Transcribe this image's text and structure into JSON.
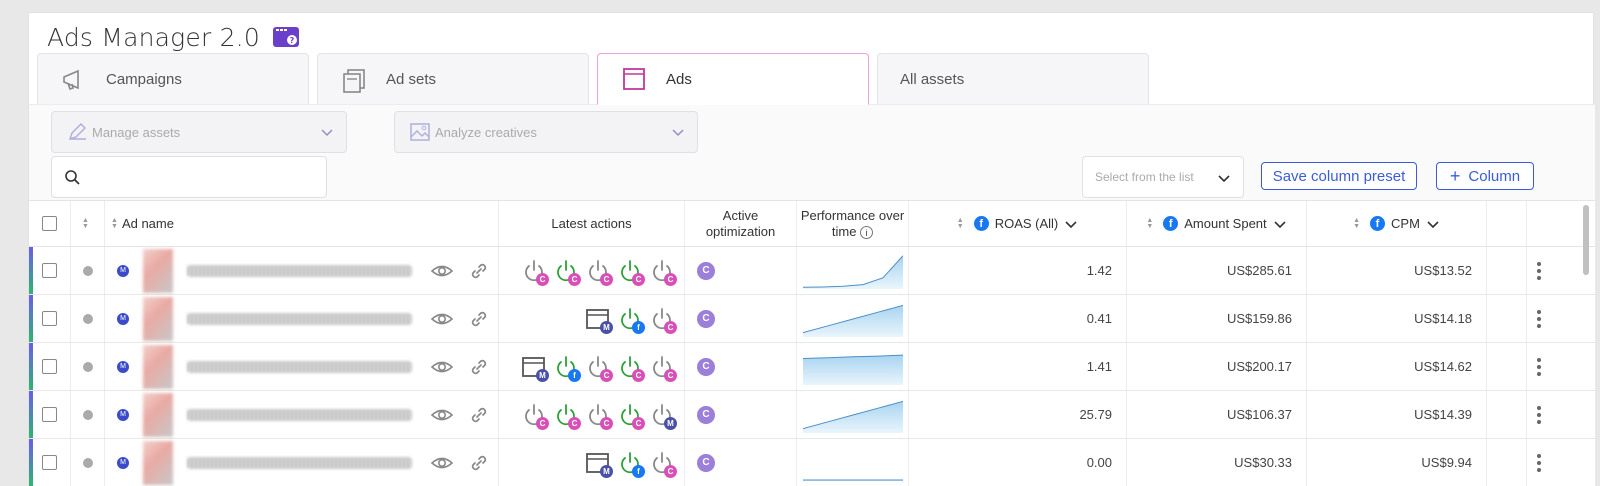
{
  "app": {
    "title": "Ads Manager 2.0"
  },
  "tabs": [
    {
      "label": "Campaigns",
      "icon": "megaphone-icon",
      "active": false
    },
    {
      "label": "Ad sets",
      "icon": "stack-icon",
      "active": false
    },
    {
      "label": "Ads",
      "icon": "ad-square-icon",
      "active": true
    },
    {
      "label": "All assets",
      "icon": "",
      "active": false
    }
  ],
  "toolbar": {
    "manage_assets": "Manage assets",
    "analyze_creatives": "Analyze creatives",
    "search_placeholder": "",
    "select_list_placeholder": "Select from the list",
    "save_preset": "Save column preset",
    "add_column": "Column"
  },
  "columns": {
    "ad_name": "Ad name",
    "latest_actions": "Latest actions",
    "active_optimization_line1": "Active",
    "active_optimization_line2": "optimization",
    "performance_line1": "Performance over",
    "performance_line2": "time",
    "roas": "ROAS (All)",
    "amount_spent": "Amount Spent",
    "cpm": "CPM"
  },
  "rows": [
    {
      "actions": [
        [
          "power",
          "#888",
          "C"
        ],
        [
          "power",
          "#2e9e3e",
          "C"
        ],
        [
          "power",
          "#888",
          "C"
        ],
        [
          "power",
          "#2e9e3e",
          "C"
        ],
        [
          "power",
          "#888",
          "C"
        ]
      ],
      "optim": "C",
      "roas": "1.42",
      "spent": "US$285.61",
      "cpm": "US$13.52",
      "trend": [
        0.02,
        0.03,
        0.05,
        0.1,
        0.3,
        0.95
      ]
    },
    {
      "actions": [
        [
          "ad",
          "#555",
          "M"
        ],
        [
          "power",
          "#2e9e3e",
          "f"
        ],
        [
          "power",
          "#888",
          "C"
        ]
      ],
      "optim": "C",
      "roas": "0.41",
      "spent": "US$159.86",
      "cpm": "US$14.18",
      "trend": [
        0.1,
        0.3,
        0.5,
        0.7,
        0.9
      ]
    },
    {
      "actions": [
        [
          "ad",
          "#555",
          "M"
        ],
        [
          "power",
          "#2e9e3e",
          "f"
        ],
        [
          "power",
          "#888",
          "C"
        ],
        [
          "power",
          "#2e9e3e",
          "C"
        ],
        [
          "power",
          "#888",
          "C"
        ]
      ],
      "optim": "C",
      "roas": "1.41",
      "spent": "US$200.17",
      "cpm": "US$14.62",
      "trend": [
        0.75,
        0.77,
        0.8,
        0.82,
        0.85
      ]
    },
    {
      "actions": [
        [
          "power",
          "#888",
          "C"
        ],
        [
          "power",
          "#2e9e3e",
          "C"
        ],
        [
          "power",
          "#888",
          "C"
        ],
        [
          "power",
          "#2e9e3e",
          "C"
        ],
        [
          "power",
          "#888",
          "M"
        ]
      ],
      "optim": "C",
      "roas": "25.79",
      "spent": "US$106.37",
      "cpm": "US$14.39",
      "trend": [
        0.1,
        0.3,
        0.5,
        0.7,
        0.9
      ]
    },
    {
      "actions": [
        [
          "ad",
          "#555",
          "M"
        ],
        [
          "power",
          "#2e9e3e",
          "f"
        ],
        [
          "power",
          "#888",
          "C"
        ]
      ],
      "optim": "C",
      "roas": "0.00",
      "spent": "US$30.33",
      "cpm": "US$9.94",
      "trend": [
        0.0,
        0.0,
        0.0,
        0.0,
        0.0
      ]
    }
  ]
}
